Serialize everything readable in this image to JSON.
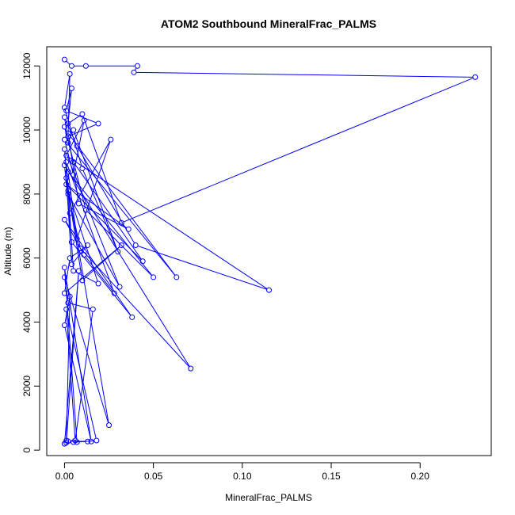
{
  "chart_data": {
    "type": "line",
    "title": "ATOM2 Southbound MineralFrac_PALMS",
    "xlabel": "MineralFrac_PALMS",
    "ylabel": "Altitude (m)",
    "xlim": [
      -0.01,
      0.24
    ],
    "ylim": [
      -170,
      12600
    ],
    "x_ticks": [
      0.0,
      0.05,
      0.1,
      0.15,
      0.2
    ],
    "x_tick_labels": [
      "0.00",
      "0.05",
      "0.10",
      "0.15",
      "0.20"
    ],
    "y_ticks": [
      0,
      2000,
      4000,
      6000,
      8000,
      10000,
      12000
    ],
    "y_tick_labels": [
      "0",
      "2000",
      "4000",
      "6000",
      "8000",
      "10000",
      "12000"
    ],
    "grid": false,
    "legend": "none",
    "series_color": "#0000ff",
    "series": [
      {
        "x": [
          0.0,
          0.004,
          0.012,
          0.041,
          0.039,
          0.231,
          0.032,
          0.01,
          0.002,
          0.004,
          0.001,
          0.019,
          0.002,
          0.003,
          0.0,
          0.01,
          0.03,
          0.005,
          0.002,
          0.0,
          0.007,
          0.04,
          0.115,
          0.001,
          0.011,
          0.005,
          0.0,
          0.063,
          0.002,
          0.008,
          0.036,
          0.001,
          0.044,
          0.005,
          0.0,
          0.012,
          0.05,
          0.002,
          0.007,
          0.026,
          0.003,
          0.0,
          0.031,
          0.002,
          0.009,
          0.071,
          0.0,
          0.004,
          0.038,
          0.0,
          0.011,
          0.028,
          0.001,
          0.005,
          0.019,
          0.002,
          0.01,
          0.032,
          0.0,
          0.003,
          0.013,
          0.004,
          0.001,
          0.025,
          0.0,
          0.002,
          0.016,
          0.006,
          0.001,
          0.018,
          0.007,
          0.0,
          0.015,
          0.0,
          0.003,
          0.001,
          0.008,
          0.0,
          0.005,
          0.013,
          0.002,
          0.0,
          0.001
        ],
        "y": [
          12200,
          12000,
          12000,
          12000,
          11800,
          11650,
          7100,
          10500,
          10200,
          11300,
          10600,
          10200,
          9800,
          11750,
          10700,
          8800,
          6200,
          10000,
          9600,
          10400,
          9500,
          6400,
          5000,
          9200,
          10300,
          8600,
          9700,
          5400,
          9900,
          7700,
          6900,
          8300,
          5900,
          9000,
          10100,
          7500,
          5400,
          8700,
          6600,
          9700,
          7400,
          9400,
          5100,
          8000,
          6300,
          2550,
          8900,
          6500,
          4150,
          7200,
          6100,
          4900,
          9000,
          5600,
          5200,
          8100,
          5300,
          6400,
          4900,
          6000,
          6400,
          5800,
          8500,
          780,
          5400,
          4600,
          4400,
          300,
          4400,
          300,
          250,
          5700,
          270,
          3900,
          4800,
          230,
          5600,
          200,
          250,
          270,
          280,
          200,
          300
        ]
      }
    ]
  }
}
